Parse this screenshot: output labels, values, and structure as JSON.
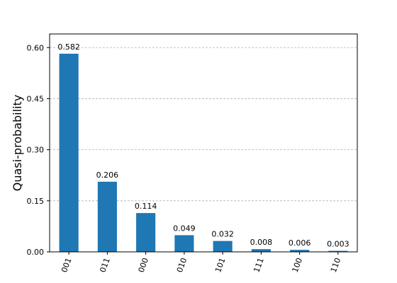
{
  "chart_data": {
    "type": "bar",
    "categories": [
      "001",
      "011",
      "000",
      "010",
      "101",
      "111",
      "100",
      "110"
    ],
    "values": [
      0.582,
      0.206,
      0.114,
      0.049,
      0.032,
      0.008,
      0.006,
      0.003
    ],
    "value_labels": [
      "0.582",
      "0.206",
      "0.114",
      "0.049",
      "0.032",
      "0.008",
      "0.006",
      "0.003"
    ],
    "title": "",
    "xlabel": "",
    "ylabel": "Quasi-probability",
    "ylim": [
      0,
      0.64
    ],
    "yticks": [
      0.0,
      0.15,
      0.3,
      0.45,
      0.6
    ],
    "ytick_labels": [
      "0.00",
      "0.15",
      "0.30",
      "0.45",
      "0.60"
    ],
    "grid": "horizontal dashed",
    "bar_color": "#1f77b4",
    "grid_color": "#b0b0b0"
  }
}
